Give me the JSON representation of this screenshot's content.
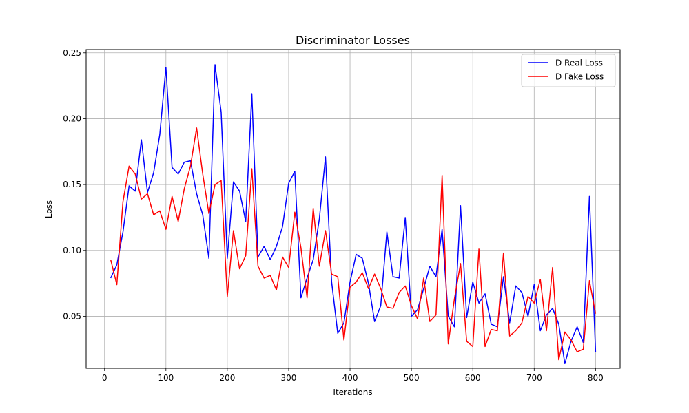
{
  "chart_data": {
    "type": "line",
    "title": "Discriminator Losses",
    "xlabel": "Iterations",
    "ylabel": "Loss",
    "xlim": [
      -30,
      840
    ],
    "ylim": [
      0.0105,
      0.2525
    ],
    "xticks": [
      0,
      100,
      200,
      300,
      400,
      500,
      600,
      700,
      800
    ],
    "yticks": [
      0.05,
      0.1,
      0.15,
      0.2,
      0.25
    ],
    "ytick_labels": [
      "0.05",
      "0.10",
      "0.15",
      "0.20",
      "0.25"
    ],
    "grid": true,
    "legend_position": "top-right",
    "x": [
      10,
      20,
      30,
      40,
      50,
      60,
      70,
      80,
      90,
      100,
      110,
      120,
      130,
      140,
      150,
      160,
      170,
      180,
      190,
      200,
      210,
      220,
      230,
      240,
      250,
      260,
      270,
      280,
      290,
      300,
      310,
      320,
      330,
      340,
      350,
      360,
      370,
      380,
      390,
      400,
      410,
      420,
      430,
      440,
      450,
      460,
      470,
      480,
      490,
      500,
      510,
      520,
      530,
      540,
      550,
      560,
      570,
      580,
      590,
      600,
      610,
      620,
      630,
      640,
      650,
      660,
      670,
      680,
      690,
      700,
      710,
      720,
      730,
      740,
      750,
      760,
      770,
      780,
      790,
      800
    ],
    "series": [
      {
        "name": "D Real Loss",
        "color": "#0000ff",
        "values": [
          0.079,
          0.089,
          0.114,
          0.149,
          0.145,
          0.184,
          0.144,
          0.159,
          0.188,
          0.239,
          0.163,
          0.158,
          0.167,
          0.168,
          0.143,
          0.127,
          0.094,
          0.241,
          0.205,
          0.094,
          0.152,
          0.145,
          0.122,
          0.219,
          0.095,
          0.103,
          0.093,
          0.103,
          0.118,
          0.151,
          0.16,
          0.064,
          0.079,
          0.093,
          0.124,
          0.171,
          0.076,
          0.037,
          0.045,
          0.076,
          0.097,
          0.094,
          0.075,
          0.046,
          0.058,
          0.114,
          0.08,
          0.079,
          0.125,
          0.05,
          0.055,
          0.071,
          0.088,
          0.08,
          0.116,
          0.05,
          0.042,
          0.134,
          0.049,
          0.076,
          0.06,
          0.067,
          0.044,
          0.042,
          0.08,
          0.045,
          0.073,
          0.068,
          0.05,
          0.074,
          0.039,
          0.051,
          0.056,
          0.044,
          0.014,
          0.031,
          0.042,
          0.03,
          0.141,
          0.023
        ]
      },
      {
        "name": "D Fake Loss",
        "color": "#ff0000",
        "values": [
          0.093,
          0.074,
          0.137,
          0.164,
          0.158,
          0.139,
          0.143,
          0.127,
          0.13,
          0.116,
          0.141,
          0.122,
          0.147,
          0.164,
          0.193,
          0.158,
          0.128,
          0.15,
          0.153,
          0.065,
          0.115,
          0.086,
          0.096,
          0.162,
          0.088,
          0.079,
          0.081,
          0.07,
          0.095,
          0.087,
          0.129,
          0.102,
          0.064,
          0.132,
          0.088,
          0.115,
          0.082,
          0.08,
          0.032,
          0.072,
          0.076,
          0.083,
          0.071,
          0.082,
          0.071,
          0.057,
          0.056,
          0.068,
          0.073,
          0.058,
          0.048,
          0.079,
          0.046,
          0.051,
          0.157,
          0.029,
          0.063,
          0.09,
          0.031,
          0.027,
          0.101,
          0.027,
          0.04,
          0.039,
          0.098,
          0.035,
          0.039,
          0.045,
          0.065,
          0.06,
          0.078,
          0.039,
          0.087,
          0.017,
          0.038,
          0.032,
          0.023,
          0.025,
          0.077,
          0.052
        ]
      }
    ]
  }
}
